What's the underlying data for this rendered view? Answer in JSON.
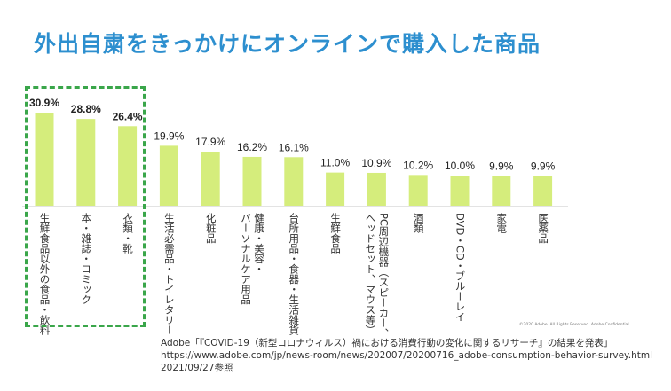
{
  "title": "外出自粛をきっかけにオンラインで購入した商品",
  "chart_data": {
    "type": "bar",
    "title": "外出自粛をきっかけにオンラインで購入した商品",
    "categories": [
      "生鮮食品以外の食品・飲料",
      "本・雑誌・コミック",
      "衣類・靴",
      "生活必需品・トイレタリー",
      "化粧品",
      "健康・美容・\nパーソナルケア用品",
      "台所用品・食器・生活雑貨",
      "生鮮食品",
      "PC周辺機器（スピーカー、\nヘッドセット、マウス等）",
      "酒類",
      "DVD・CD・ブルーレイ",
      "家電",
      "医薬品"
    ],
    "values": [
      30.9,
      28.8,
      26.4,
      19.9,
      17.9,
      16.2,
      16.1,
      11.0,
      10.9,
      10.2,
      10.0,
      9.9,
      9.9
    ],
    "value_labels": [
      "30.9%",
      "28.8%",
      "26.4%",
      "19.9%",
      "17.9%",
      "16.2%",
      "16.1%",
      "11.0%",
      "10.9%",
      "10.2%",
      "10.0%",
      "9.9%",
      "9.9%"
    ],
    "unit": "%",
    "ylim": [
      0,
      35
    ],
    "grid": false,
    "bar_color": "#d5ed7c",
    "highlight_color": "#3aa64a",
    "highlighted_categories": [
      0,
      1,
      2
    ]
  },
  "copyright": "©2020 Adobe. All Rights Reserved. Adobe Confidential.",
  "source": {
    "line1": "Adobe「『COVID-19（新型コロナウィルス）禍における消費行動の変化に関するリサーチ』の結果を発表」",
    "line2": "https://www.adobe.com/jp/news-room/news/202007/20200716_adobe-consumption-behavior-survey.html",
    "line3": "2021/09/27参照"
  }
}
